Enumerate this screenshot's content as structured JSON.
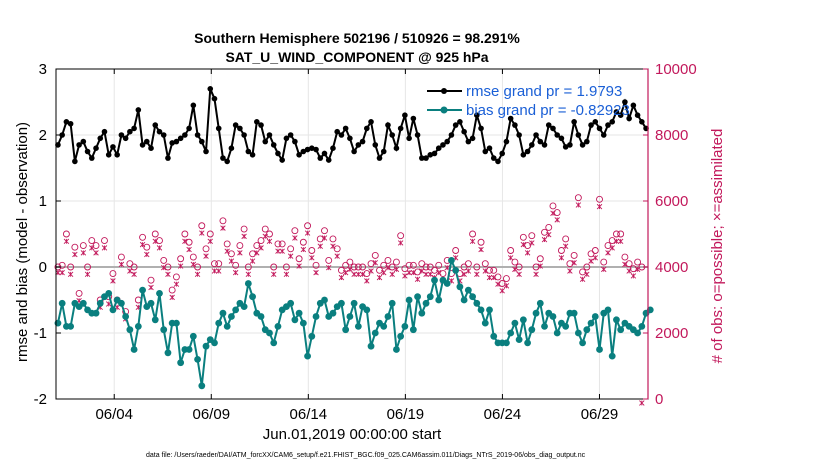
{
  "chart_data": {
    "type": "line",
    "title": "Southern Hemisphere 502196 / 510926 = 98.291%",
    "subtitle": "SAT_U_WIND_COMPONENT @ 925 hPa",
    "xlabel": "Jun.01,2019 00:00:00 start",
    "ylabel": "rmse and bias (model - observation)",
    "y2label": "# of obs: o=possible; ×=assimilated",
    "footnote": "data file: /Users/raeder/DAI/ATM_forcXX/CAM6_setup/f.e21.FHIST_BGC.f09_025.CAM6assim.011/Diags_NTrS_2019-06/obs_diag_output.nc",
    "xlim": [
      1,
      31.5
    ],
    "ylim": [
      -2,
      3
    ],
    "y2lim": [
      0,
      10000
    ],
    "xticks": [
      4,
      9,
      14,
      19,
      24,
      29
    ],
    "xtick_labels": [
      "06/04",
      "06/09",
      "06/14",
      "06/19",
      "06/24",
      "06/29"
    ],
    "yticks": [
      -2,
      -1,
      0,
      1,
      2,
      3
    ],
    "ytick_labels": [
      "-2",
      "-1",
      "0",
      "1",
      "2",
      "3"
    ],
    "y2ticks": [
      0,
      2000,
      4000,
      6000,
      8000,
      10000
    ],
    "y2tick_labels": [
      "0",
      "2000",
      "4000",
      "6000",
      "8000",
      "10000"
    ],
    "grid": true,
    "colors": {
      "rmse": "#000000",
      "bias": "#0a7f7f",
      "obs": "#c2185b",
      "zero": "#b0b0b0",
      "legend_text": "#1a5fd6"
    },
    "series": [
      {
        "name": "rmse grand pr = 1.9793",
        "axis": "left",
        "values": [
          1.85,
          2.0,
          2.2,
          2.17,
          1.6,
          1.85,
          1.9,
          1.75,
          1.65,
          1.8,
          1.95,
          2.05,
          1.7,
          1.82,
          1.7,
          2.0,
          1.95,
          2.05,
          2.1,
          2.38,
          1.85,
          1.9,
          1.8,
          2.15,
          2.05,
          2.0,
          1.65,
          1.88,
          1.9,
          1.95,
          2.0,
          2.1,
          2.45,
          2.0,
          1.9,
          1.75,
          2.7,
          2.55,
          2.1,
          1.65,
          1.6,
          1.8,
          2.15,
          2.1,
          2.0,
          1.75,
          1.7,
          2.2,
          2.15,
          1.9,
          2.0,
          1.85,
          1.72,
          1.62,
          1.95,
          2.0,
          1.9,
          1.7,
          1.75,
          1.78,
          1.8,
          1.78,
          1.65,
          1.72,
          1.62,
          1.8,
          2.05,
          2.0,
          2.1,
          1.95,
          1.75,
          1.85,
          1.9,
          2.1,
          2.2,
          1.85,
          1.65,
          1.75,
          2.15,
          2.0,
          1.8,
          2.1,
          2.3,
          1.95,
          2.25,
          2.0,
          1.65,
          1.65,
          1.7,
          1.72,
          1.8,
          1.85,
          1.9,
          2.0,
          2.15,
          2.2,
          2.05,
          1.9,
          1.95,
          2.3,
          2.1,
          1.75,
          1.8,
          1.65,
          1.6,
          1.72,
          1.9,
          2.25,
          2.15,
          2.0,
          1.7,
          1.75,
          1.85,
          2.0,
          1.9,
          1.85,
          2.15,
          2.1,
          2.0,
          1.95,
          1.82,
          1.85,
          2.2,
          2.0,
          1.85,
          1.9,
          2.15,
          2.2,
          2.1,
          2.0,
          2.15,
          2.2,
          2.35,
          2.3,
          2.5,
          2.25,
          2.45,
          2.3,
          2.2,
          2.1
        ]
      },
      {
        "name": "bias grand pr = -0.82923",
        "axis": "left",
        "values": [
          -0.85,
          -0.55,
          -0.9,
          -0.9,
          -0.55,
          -0.6,
          -0.55,
          -0.65,
          -0.7,
          -0.7,
          -0.55,
          -0.45,
          -0.4,
          -0.65,
          -0.5,
          -0.55,
          -0.75,
          -0.95,
          -1.25,
          -0.9,
          -0.35,
          -0.6,
          -0.55,
          -0.8,
          -0.4,
          -0.95,
          -1.3,
          -0.85,
          -0.85,
          -1.45,
          -1.25,
          -1.25,
          -1.05,
          -1.4,
          -1.8,
          -1.2,
          -1.1,
          -1.15,
          -0.85,
          -0.7,
          -0.9,
          -0.75,
          -0.65,
          -0.55,
          -0.6,
          -0.25,
          -0.45,
          -0.7,
          -0.75,
          -0.95,
          -1.0,
          -1.15,
          -0.9,
          -0.65,
          -0.6,
          -0.55,
          -0.8,
          -0.7,
          -0.85,
          -1.35,
          -1.05,
          -0.75,
          -0.55,
          -0.5,
          -0.75,
          -0.7,
          -0.6,
          -0.55,
          -0.95,
          -0.75,
          -0.55,
          -0.9,
          -0.6,
          -0.65,
          -1.2,
          -1.0,
          -0.85,
          -0.9,
          -0.75,
          -0.55,
          -1.25,
          -1.05,
          -0.9,
          -0.5,
          -0.95,
          -0.45,
          -0.7,
          -0.55,
          -0.45,
          -0.2,
          -0.5,
          -0.2,
          -0.25,
          0.1,
          -0.05,
          -0.3,
          -0.5,
          -0.35,
          -0.45,
          -0.55,
          -0.65,
          -0.85,
          -0.65,
          -1.05,
          -1.15,
          -1.15,
          -1.15,
          -1.0,
          -0.85,
          -1.1,
          -0.8,
          -1.15,
          -0.95,
          -0.7,
          -0.55,
          -0.9,
          -0.7,
          -0.75,
          -1.0,
          -0.85,
          -0.9,
          -0.7,
          -0.7,
          -1.0,
          -1.15,
          -0.95,
          -0.85,
          -0.75,
          -1.25,
          -0.7,
          -0.65,
          -1.35,
          -0.8,
          -0.95,
          -0.85,
          -0.9,
          -0.95,
          -1.0,
          -0.9,
          -0.7,
          -0.65
        ]
      },
      {
        "name": "# obs possible (o)",
        "axis": "right",
        "values": [
          4000,
          4050,
          5000,
          4000,
          4600,
          3200,
          4650,
          4000,
          4800,
          4650,
          3000,
          4800,
          3100,
          3800,
          3000,
          4300,
          2650,
          4100,
          4000,
          3000,
          4900,
          4600,
          3600,
          5000,
          4800,
          4200,
          4000,
          3300,
          3700,
          4250,
          5000,
          4750,
          4300,
          4000,
          5250,
          4550,
          5000,
          4100,
          4100,
          5400,
          4700,
          4400,
          4050,
          4650,
          5150,
          4000,
          4400,
          4650,
          4800,
          5150,
          5000,
          4000,
          4700,
          4700,
          4000,
          4550,
          5100,
          4250,
          4750,
          5250,
          4500,
          4050,
          4850,
          5100,
          4200,
          4850,
          4550,
          3900,
          4050,
          4150,
          4000,
          4000,
          4000,
          3800,
          4100,
          4350,
          3900,
          4050,
          4200,
          4000,
          4150,
          4950,
          3950,
          4050,
          4050,
          3850,
          4100,
          4000,
          4000,
          3900,
          4050,
          3800,
          4200,
          3800,
          4500,
          3800,
          4000,
          4100,
          5000,
          4000,
          4750,
          4100,
          3900,
          3900,
          3700,
          3500,
          3650,
          4500,
          4150,
          4000,
          4900,
          4650,
          4950,
          4000,
          4250,
          5050,
          5200,
          5850,
          5650,
          4500,
          4850,
          4100,
          4350,
          6100,
          3850,
          4000,
          4400,
          4500,
          6050,
          4150,
          4650,
          4800,
          5000,
          5000,
          4300,
          4100,
          3950,
          4150,
          4000
        ]
      },
      {
        "name": "# obs assimilated (×)",
        "axis": "right",
        "values": [
          3950,
          3950,
          4900,
          3900,
          4500,
          3100,
          4550,
          3900,
          4700,
          4550,
          2900,
          4700,
          3000,
          3700,
          2900,
          4200,
          2550,
          4000,
          3900,
          2900,
          4800,
          4500,
          3500,
          4900,
          4700,
          4100,
          3900,
          3200,
          3600,
          4150,
          4900,
          4650,
          4200,
          3900,
          5150,
          4450,
          4900,
          4000,
          4000,
          5300,
          4600,
          4300,
          3950,
          4550,
          5050,
          3900,
          4300,
          4550,
          4700,
          5050,
          4900,
          3900,
          4600,
          4600,
          3900,
          4450,
          5000,
          4150,
          4650,
          5150,
          4400,
          3950,
          4750,
          5000,
          4100,
          4750,
          4450,
          3800,
          3950,
          4050,
          3900,
          3900,
          3900,
          3700,
          4000,
          4250,
          3800,
          3950,
          4100,
          3900,
          4050,
          4850,
          3850,
          3950,
          3950,
          3750,
          4000,
          3900,
          3900,
          3800,
          3950,
          3700,
          4100,
          3700,
          4400,
          3700,
          3900,
          4000,
          4900,
          3900,
          4650,
          4000,
          3800,
          3800,
          3600,
          3400,
          3550,
          4400,
          4050,
          3900,
          4800,
          4550,
          4850,
          3900,
          4150,
          4950,
          5100,
          5750,
          5550,
          4400,
          4750,
          4000,
          4250,
          6000,
          3750,
          3900,
          4300,
          4400,
          5950,
          4050,
          4550,
          4700,
          4900,
          4900,
          4200,
          4000,
          3850,
          4050,
          0
        ]
      }
    ]
  }
}
